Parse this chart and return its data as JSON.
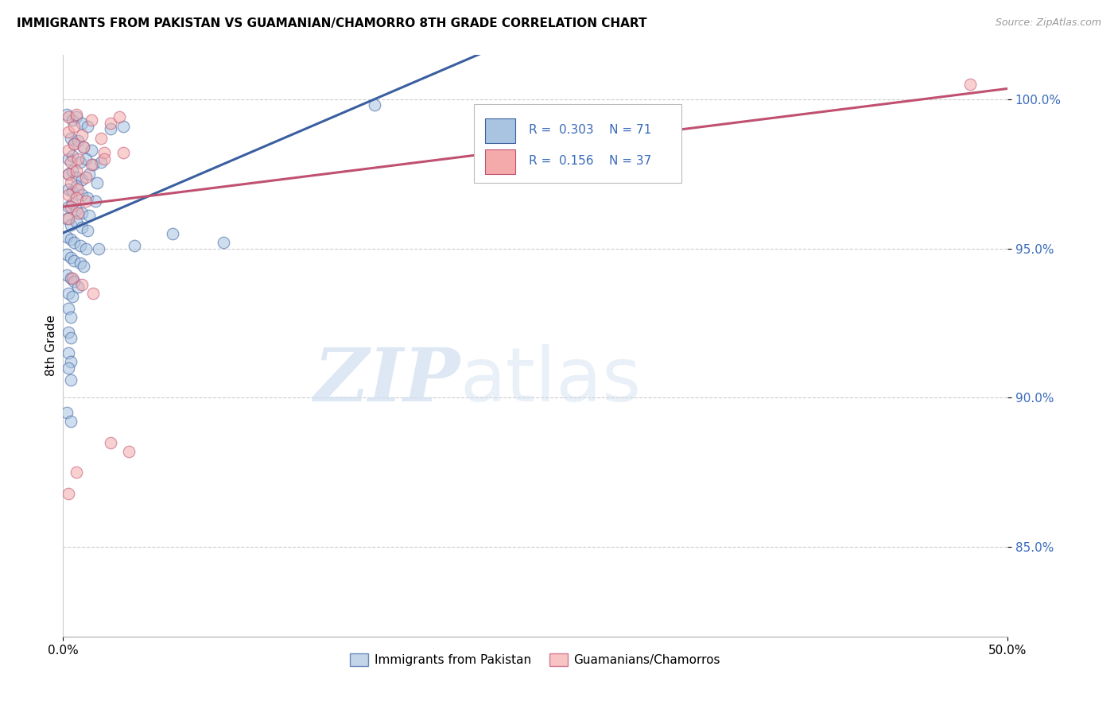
{
  "title": "IMMIGRANTS FROM PAKISTAN VS GUAMANIAN/CHAMORRO 8TH GRADE CORRELATION CHART",
  "source": "Source: ZipAtlas.com",
  "ylabel": "8th Grade",
  "yticks": [
    100.0,
    95.0,
    90.0,
    85.0
  ],
  "ytick_labels": [
    "100.0%",
    "95.0%",
    "90.0%",
    "85.0%"
  ],
  "xlim": [
    0.0,
    50.0
  ],
  "ylim": [
    82.0,
    101.5
  ],
  "r1": "0.303",
  "n1": "71",
  "r2": "0.156",
  "n2": "37",
  "color_blue": "#A8C4E0",
  "color_pink": "#F4AAAA",
  "line_blue": "#3A5FA0",
  "line_pink": "#C05070",
  "blue_points": [
    [
      0.2,
      99.5
    ],
    [
      0.5,
      99.3
    ],
    [
      0.7,
      99.4
    ],
    [
      1.0,
      99.2
    ],
    [
      1.3,
      99.1
    ],
    [
      2.5,
      99.0
    ],
    [
      3.2,
      99.1
    ],
    [
      0.4,
      98.7
    ],
    [
      0.6,
      98.5
    ],
    [
      0.8,
      98.6
    ],
    [
      1.1,
      98.4
    ],
    [
      1.5,
      98.3
    ],
    [
      0.3,
      98.0
    ],
    [
      0.5,
      98.1
    ],
    [
      0.9,
      97.9
    ],
    [
      1.2,
      98.0
    ],
    [
      1.6,
      97.8
    ],
    [
      2.0,
      97.9
    ],
    [
      0.3,
      97.5
    ],
    [
      0.5,
      97.6
    ],
    [
      0.7,
      97.4
    ],
    [
      1.0,
      97.3
    ],
    [
      1.4,
      97.5
    ],
    [
      1.8,
      97.2
    ],
    [
      0.3,
      97.0
    ],
    [
      0.5,
      96.9
    ],
    [
      0.7,
      97.1
    ],
    [
      1.0,
      96.8
    ],
    [
      1.3,
      96.7
    ],
    [
      1.7,
      96.6
    ],
    [
      0.3,
      96.4
    ],
    [
      0.5,
      96.5
    ],
    [
      0.7,
      96.3
    ],
    [
      1.0,
      96.2
    ],
    [
      1.4,
      96.1
    ],
    [
      0.2,
      96.0
    ],
    [
      0.4,
      95.8
    ],
    [
      0.7,
      95.9
    ],
    [
      1.0,
      95.7
    ],
    [
      1.3,
      95.6
    ],
    [
      0.2,
      95.4
    ],
    [
      0.4,
      95.3
    ],
    [
      0.6,
      95.2
    ],
    [
      0.9,
      95.1
    ],
    [
      1.2,
      95.0
    ],
    [
      0.2,
      94.8
    ],
    [
      0.4,
      94.7
    ],
    [
      0.6,
      94.6
    ],
    [
      0.9,
      94.5
    ],
    [
      1.1,
      94.4
    ],
    [
      0.2,
      94.1
    ],
    [
      0.4,
      94.0
    ],
    [
      0.6,
      93.9
    ],
    [
      0.8,
      93.7
    ],
    [
      0.3,
      93.5
    ],
    [
      0.5,
      93.4
    ],
    [
      0.3,
      93.0
    ],
    [
      0.4,
      92.7
    ],
    [
      0.3,
      92.2
    ],
    [
      0.4,
      92.0
    ],
    [
      0.3,
      91.5
    ],
    [
      0.4,
      91.2
    ],
    [
      0.3,
      91.0
    ],
    [
      0.4,
      90.6
    ],
    [
      3.8,
      95.1
    ],
    [
      8.5,
      95.2
    ],
    [
      16.5,
      99.8
    ],
    [
      1.9,
      95.0
    ],
    [
      0.2,
      89.5
    ],
    [
      0.4,
      89.2
    ],
    [
      5.8,
      95.5
    ]
  ],
  "pink_points": [
    [
      0.3,
      99.4
    ],
    [
      0.7,
      99.5
    ],
    [
      1.5,
      99.3
    ],
    [
      2.5,
      99.2
    ],
    [
      3.0,
      99.4
    ],
    [
      0.3,
      98.9
    ],
    [
      0.6,
      99.1
    ],
    [
      1.0,
      98.8
    ],
    [
      2.0,
      98.7
    ],
    [
      0.3,
      98.3
    ],
    [
      0.6,
      98.5
    ],
    [
      1.1,
      98.4
    ],
    [
      2.2,
      98.2
    ],
    [
      0.4,
      97.9
    ],
    [
      0.8,
      98.0
    ],
    [
      1.5,
      97.8
    ],
    [
      0.3,
      97.5
    ],
    [
      0.7,
      97.6
    ],
    [
      1.2,
      97.4
    ],
    [
      0.4,
      97.2
    ],
    [
      0.8,
      97.0
    ],
    [
      0.3,
      96.8
    ],
    [
      0.7,
      96.7
    ],
    [
      1.2,
      96.6
    ],
    [
      0.4,
      96.4
    ],
    [
      0.8,
      96.2
    ],
    [
      0.3,
      96.0
    ],
    [
      2.2,
      98.0
    ],
    [
      3.2,
      98.2
    ],
    [
      0.5,
      94.0
    ],
    [
      1.0,
      93.8
    ],
    [
      1.6,
      93.5
    ],
    [
      2.5,
      88.5
    ],
    [
      3.5,
      88.2
    ],
    [
      0.3,
      86.8
    ],
    [
      0.7,
      87.5
    ],
    [
      48.0,
      100.5
    ]
  ]
}
